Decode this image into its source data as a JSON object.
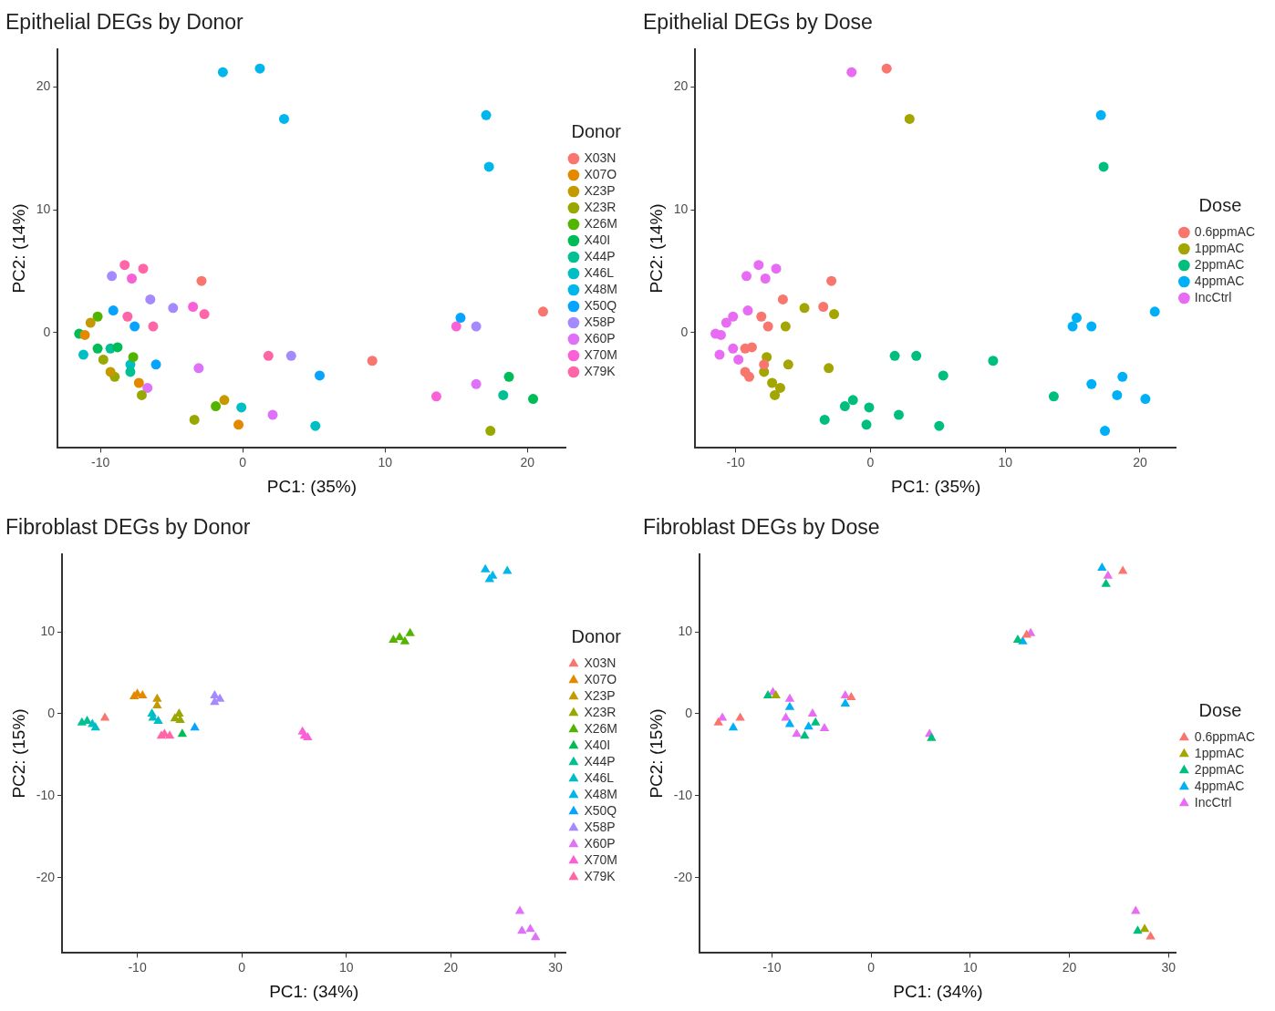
{
  "chart_data": [
    {
      "type": "scatter",
      "title": "Epithelial DEGs by Donor",
      "xlabel": "PC1: (35%)",
      "ylabel": "PC2: (14%)",
      "legend_title": "Donor",
      "legend": "right",
      "marker": "circle",
      "xlim": [
        -13,
        22.7
      ],
      "ylim": [
        -9.4,
        23.1
      ],
      "xticks": [
        -10,
        0,
        10,
        20
      ],
      "yticks": [
        0,
        10,
        20
      ],
      "series": [
        {
          "name": "X03N",
          "color": "#f8766d",
          "x": [
            -2.9,
            9.1,
            21.1
          ],
          "values": [
            4.2,
            -2.3,
            1.7
          ]
        },
        {
          "name": "X07O",
          "color": "#e38900",
          "x": [
            -11.1,
            -7.3,
            -0.3
          ],
          "values": [
            -0.2,
            -4.1,
            -7.5
          ]
        },
        {
          "name": "X23P",
          "color": "#c49a00",
          "x": [
            -10.7,
            -9.3,
            -1.3
          ],
          "values": [
            0.8,
            -3.2,
            -5.5
          ]
        },
        {
          "name": "X23R",
          "color": "#99a800",
          "x": [
            -9.8,
            -9.0,
            -7.1,
            -3.4,
            17.4
          ],
          "values": [
            -2.2,
            -3.6,
            -5.1,
            -7.1,
            -8.0
          ]
        },
        {
          "name": "X26M",
          "color": "#53b400",
          "x": [
            -10.2,
            -7.7,
            -1.9
          ],
          "values": [
            1.3,
            -2.0,
            -6.0
          ]
        },
        {
          "name": "X40I",
          "color": "#00bc56",
          "x": [
            -11.5,
            -10.2,
            -8.8,
            18.7,
            20.4
          ],
          "values": [
            -0.1,
            -1.3,
            -1.2,
            -3.6,
            -5.4
          ]
        },
        {
          "name": "X44P",
          "color": "#00c094",
          "x": [
            -9.3,
            -7.9,
            18.3
          ],
          "values": [
            -1.3,
            -3.2,
            -5.1
          ]
        },
        {
          "name": "X46L",
          "color": "#00bfc4",
          "x": [
            -11.2,
            -7.9,
            -0.1,
            5.1
          ],
          "values": [
            -1.8,
            -2.6,
            -6.1,
            -7.6
          ]
        },
        {
          "name": "X48M",
          "color": "#00b6eb",
          "x": [
            -1.4,
            1.2,
            2.9,
            17.1,
            17.3
          ],
          "values": [
            21.2,
            21.5,
            17.4,
            17.7,
            13.5
          ]
        },
        {
          "name": "X50Q",
          "color": "#06a4ff",
          "x": [
            -9.1,
            -7.6,
            -6.1,
            5.4,
            15.3
          ],
          "values": [
            1.8,
            0.5,
            -2.6,
            -3.5,
            1.2
          ]
        },
        {
          "name": "X58P",
          "color": "#a58aff",
          "x": [
            -9.2,
            -6.5,
            -4.9,
            3.4,
            16.4
          ],
          "values": [
            4.6,
            2.7,
            2.0,
            -1.9,
            0.5
          ]
        },
        {
          "name": "X60P",
          "color": "#df70f8",
          "x": [
            -6.7,
            -3.1,
            2.1,
            16.4
          ],
          "values": [
            -4.5,
            -2.9,
            -6.7,
            -4.2
          ]
        },
        {
          "name": "X70M",
          "color": "#fb61d7",
          "x": [
            -7.8,
            -3.5,
            15.0,
            13.6
          ],
          "values": [
            4.4,
            2.1,
            0.5,
            -5.2
          ]
        },
        {
          "name": "X79K",
          "color": "#ff66a8",
          "x": [
            -8.3,
            -7.0,
            -2.7,
            -8.1,
            -6.3,
            1.8
          ],
          "values": [
            5.5,
            5.2,
            1.5,
            1.3,
            0.5,
            -1.9
          ]
        }
      ]
    },
    {
      "type": "scatter",
      "title": "Epithelial DEGs by Dose",
      "xlabel": "PC1: (35%)",
      "ylabel": "PC2: (14%)",
      "legend_title": "Dose",
      "legend": "right",
      "marker": "circle",
      "xlim": [
        -13,
        22.7
      ],
      "ylim": [
        -9.4,
        23.1
      ],
      "xticks": [
        -10,
        0,
        10,
        20
      ],
      "yticks": [
        0,
        10,
        20
      ],
      "series": [
        {
          "name": "0.6ppmAC",
          "color": "#f8766d",
          "x": [
            1.2,
            -2.9,
            -6.5,
            -3.5,
            -8.1,
            -7.6,
            -9.3,
            -8.8,
            -7.9,
            -9.3,
            -9.0
          ],
          "values": [
            21.5,
            4.2,
            2.7,
            2.1,
            1.3,
            0.5,
            -1.3,
            -1.2,
            -2.6,
            -3.2,
            -3.6
          ]
        },
        {
          "name": "1ppmAC",
          "color": "#a3a500",
          "x": [
            2.9,
            -4.9,
            -2.7,
            -6.3,
            -7.7,
            -7.9,
            -6.1,
            -7.3,
            -6.7,
            -7.1,
            -3.1
          ],
          "values": [
            17.4,
            2.0,
            1.5,
            0.5,
            -2.0,
            -3.2,
            -2.6,
            -4.1,
            -4.5,
            -5.1,
            -2.9
          ]
        },
        {
          "name": "2ppmAC",
          "color": "#00bf7d",
          "x": [
            17.3,
            1.8,
            3.4,
            9.1,
            5.4,
            -3.4,
            -1.9,
            -1.3,
            -0.1,
            -0.3,
            2.1,
            5.1,
            13.6
          ],
          "values": [
            13.5,
            -1.9,
            -1.9,
            -2.3,
            -3.5,
            -7.1,
            -6.0,
            -5.5,
            -6.1,
            -7.5,
            -6.7,
            -7.6,
            -5.2
          ]
        },
        {
          "name": "4ppmAC",
          "color": "#00b0f6",
          "x": [
            17.1,
            15.3,
            15.0,
            16.4,
            21.1,
            16.4,
            18.7,
            18.3,
            20.4,
            17.4
          ],
          "values": [
            17.7,
            1.2,
            0.5,
            0.5,
            1.7,
            -4.2,
            -3.6,
            -5.1,
            -5.4,
            -8.0
          ]
        },
        {
          "name": "IncCtrl",
          "color": "#e76bf3",
          "x": [
            -1.4,
            -8.3,
            -7.0,
            -9.2,
            -7.8,
            -9.1,
            -10.2,
            -10.7,
            -11.5,
            -11.1,
            -11.2,
            -10.2,
            -9.8
          ],
          "values": [
            21.2,
            5.5,
            5.2,
            4.6,
            4.4,
            1.8,
            1.3,
            0.8,
            -0.1,
            -0.2,
            -1.8,
            -1.3,
            -2.2
          ]
        }
      ]
    },
    {
      "type": "scatter",
      "title": "Fibroblast DEGs by Donor",
      "xlabel": "PC1: (34%)",
      "ylabel": "PC2: (15%)",
      "legend_title": "Donor",
      "legend": "right",
      "marker": "triangle",
      "xlim": [
        -17.2,
        31
      ],
      "ylim": [
        -29.2,
        19.5
      ],
      "xticks": [
        -10,
        0,
        10,
        20,
        30
      ],
      "yticks": [
        -20,
        -10,
        0,
        10
      ],
      "series": [
        {
          "name": "X03N",
          "color": "#f8766d",
          "x": [
            -13.1
          ],
          "values": [
            -0.5
          ]
        },
        {
          "name": "X07O",
          "color": "#e38900",
          "x": [
            -10.3,
            -10.0,
            -9.5
          ],
          "values": [
            2.1,
            2.4,
            2.2
          ]
        },
        {
          "name": "X23P",
          "color": "#c49a00",
          "x": [
            -8.1,
            -8.1
          ],
          "values": [
            1.8,
            1.0
          ]
        },
        {
          "name": "X23R",
          "color": "#99a800",
          "x": [
            -6.4,
            -6.0,
            -5.9
          ],
          "values": [
            -0.6,
            0.0,
            -0.8
          ]
        },
        {
          "name": "X26M",
          "color": "#53b400",
          "x": [
            14.5,
            15.1,
            16.1,
            15.6
          ],
          "values": [
            9.0,
            9.3,
            9.8,
            8.8
          ]
        },
        {
          "name": "X40I",
          "color": "#00bc56",
          "x": [
            -5.7
          ],
          "values": [
            -2.5
          ]
        },
        {
          "name": "X44P",
          "color": "#00c094",
          "x": [
            -15.3,
            -14.8
          ],
          "values": [
            -1.1,
            -0.9
          ]
        },
        {
          "name": "X46L",
          "color": "#00bfc4",
          "x": [
            -14.3,
            -14.0,
            -8.6,
            -8.5,
            -8.0
          ],
          "values": [
            -1.3,
            -1.7,
            0.0,
            -0.5,
            -0.9
          ]
        },
        {
          "name": "X48M",
          "color": "#00b6eb",
          "x": [
            23.3,
            23.7,
            24.0,
            25.4
          ],
          "values": [
            17.6,
            16.4,
            16.8,
            17.4
          ]
        },
        {
          "name": "X50Q",
          "color": "#06a4ff",
          "x": [
            -4.5
          ],
          "values": [
            -1.7
          ]
        },
        {
          "name": "X58P",
          "color": "#a58aff",
          "x": [
            -2.6,
            -2.1,
            -2.6
          ],
          "values": [
            2.2,
            1.8,
            1.4
          ]
        },
        {
          "name": "X60P",
          "color": "#df70f8",
          "x": [
            26.6,
            26.8,
            27.6,
            28.1
          ],
          "values": [
            -24.1,
            -26.5,
            -26.3,
            -27.3
          ]
        },
        {
          "name": "X70M",
          "color": "#fb61d7",
          "x": [
            5.8,
            6.0,
            6.3
          ],
          "values": [
            -2.2,
            -2.7,
            -2.9
          ]
        },
        {
          "name": "X79K",
          "color": "#ff66a8",
          "x": [
            -7.7,
            -7.4,
            -6.9
          ],
          "values": [
            -2.7,
            -2.5,
            -2.7
          ]
        }
      ]
    },
    {
      "type": "scatter",
      "title": "Fibroblast DEGs by Dose",
      "xlabel": "PC1: (34%)",
      "ylabel": "PC2: (15%)",
      "legend_title": "Dose",
      "legend": "right",
      "marker": "triangle",
      "xlim": [
        -17.3,
        30.8
      ],
      "ylim": [
        -29.2,
        19.5
      ],
      "xticks": [
        -10,
        0,
        10,
        20,
        30
      ],
      "yticks": [
        -20,
        -10,
        0,
        10
      ],
      "series": [
        {
          "name": "0.6ppmAC",
          "color": "#f8766d",
          "x": [
            25.4,
            15.7,
            -2.0,
            -15.4,
            -13.2,
            28.2
          ],
          "values": [
            17.4,
            9.6,
            2.0,
            -1.1,
            -0.5,
            -27.2
          ]
        },
        {
          "name": "1ppmAC",
          "color": "#a3a500",
          "x": [
            -9.6,
            27.6
          ],
          "values": [
            2.2,
            -26.3
          ]
        },
        {
          "name": "2ppmAC",
          "color": "#00bf7d",
          "x": [
            23.7,
            14.8,
            -10.4,
            -6.7,
            -5.6,
            6.1,
            26.9
          ],
          "values": [
            15.8,
            9.0,
            2.2,
            -2.7,
            -1.1,
            -3.0,
            -26.5
          ]
        },
        {
          "name": "4ppmAC",
          "color": "#00b0f6",
          "x": [
            23.3,
            15.3,
            -8.2,
            -2.6,
            -13.9,
            -8.2,
            -6.3
          ],
          "values": [
            17.8,
            8.8,
            0.8,
            1.2,
            -1.7,
            -1.3,
            -1.6
          ]
        },
        {
          "name": "IncCtrl",
          "color": "#e76bf3",
          "x": [
            23.9,
            16.1,
            -9.9,
            -8.2,
            -2.6,
            -15.0,
            -8.6,
            -7.5,
            -5.9,
            -4.7,
            5.9,
            26.7
          ],
          "values": [
            16.8,
            9.8,
            2.6,
            1.8,
            2.2,
            -0.5,
            -0.5,
            -2.5,
            0.0,
            -1.8,
            -2.5,
            -24.1
          ]
        }
      ]
    }
  ]
}
